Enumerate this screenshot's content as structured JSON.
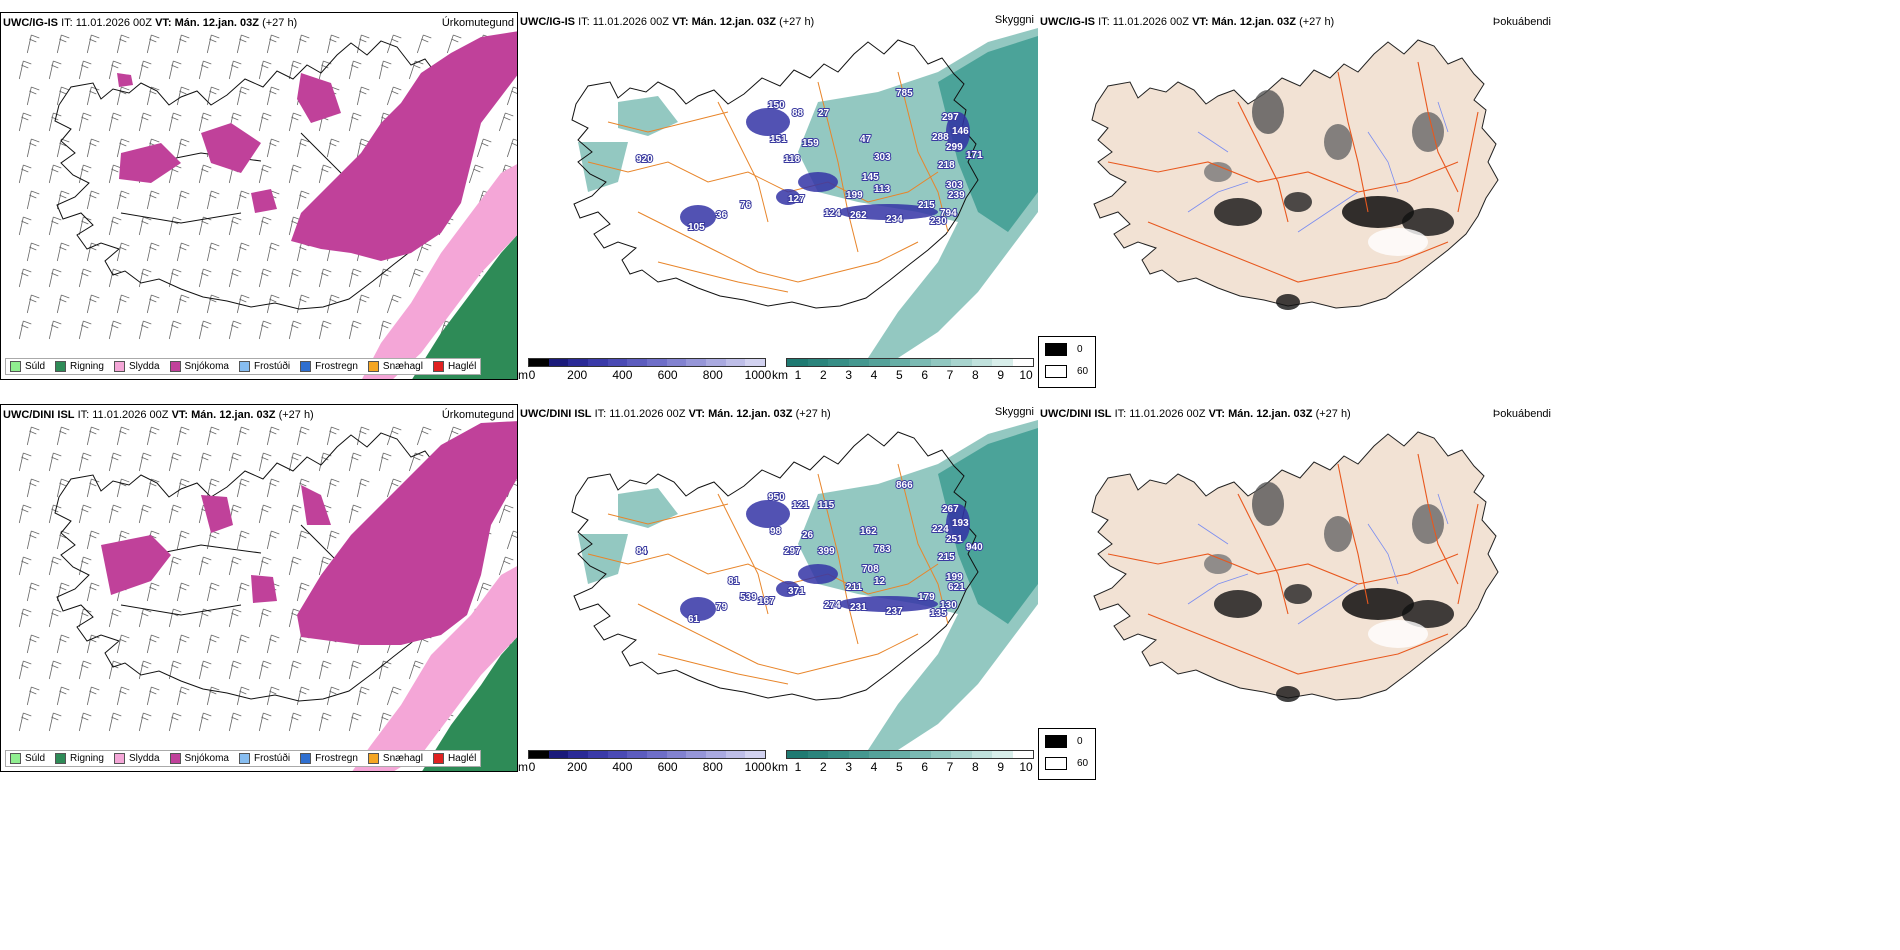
{
  "rows": [
    {
      "model": "UWC/IG-IS",
      "it_label": "IT:",
      "it_value": "11.01.2026 00Z",
      "vt_label": "VT:",
      "vt_value": "Mán. 12.jan. 03Z",
      "lead": "(+27 h)",
      "visibility_labels": [
        "150",
        "88",
        "27",
        "151",
        "159",
        "118",
        "47",
        "303",
        "145",
        "785",
        "297",
        "288",
        "146",
        "299",
        "171",
        "218",
        "303",
        "239",
        "199",
        "215",
        "794",
        "230",
        "234",
        "262",
        "124",
        "127",
        "76",
        "36",
        "105",
        "920",
        "113"
      ]
    },
    {
      "model": "UWC/DINI ISL",
      "it_label": "IT:",
      "it_value": "11.01.2026 00Z",
      "vt_label": "VT:",
      "vt_value": "Mán. 12.jan. 03Z",
      "lead": "(+27 h)",
      "visibility_labels": [
        "950",
        "121",
        "115",
        "98",
        "26",
        "297",
        "162",
        "783",
        "708",
        "866",
        "267",
        "224",
        "193",
        "251",
        "940",
        "215",
        "199",
        "621",
        "211",
        "179",
        "130",
        "135",
        "237",
        "231",
        "274",
        "371",
        "539",
        "79",
        "61",
        "84",
        "12",
        "399",
        "167",
        "81"
      ]
    }
  ],
  "panel_titles": {
    "precip_type": "Úrkomutegund",
    "visibility": "Skyggni",
    "fog": "Þokuábendi"
  },
  "precip_legend": [
    {
      "label": "Súld",
      "color": "#90ee90"
    },
    {
      "label": "Rigning",
      "color": "#2e8b57"
    },
    {
      "label": "Slydda",
      "color": "#f4a6d7"
    },
    {
      "label": "Snjókoma",
      "color": "#c0419a"
    },
    {
      "label": "Frostúði",
      "color": "#87bdf0"
    },
    {
      "label": "Frostregn",
      "color": "#2f6fd0"
    },
    {
      "label": "Snæhagl",
      "color": "#f5a623"
    },
    {
      "label": "Haglél",
      "color": "#e02020"
    }
  ],
  "altitude_bar": {
    "unit": "m",
    "ticks": [
      "0",
      "200",
      "400",
      "600",
      "800",
      "1000"
    ],
    "colors": [
      "#000000",
      "#1a1a7a",
      "#2a2a96",
      "#3a3aa8",
      "#4a4ab4",
      "#5c5cbe",
      "#6e6ec8",
      "#8282d0",
      "#9696d8",
      "#aaaae0",
      "#bebee8",
      "#d2d2f0"
    ]
  },
  "visibility_bar": {
    "unit": "km",
    "ticks": [
      "1",
      "2",
      "3",
      "4",
      "5",
      "6",
      "7",
      "8",
      "9",
      "10"
    ],
    "colors": [
      "#1f7a72",
      "#2b847c",
      "#378e86",
      "#459890",
      "#55a29a",
      "#67aea6",
      "#7bbab3",
      "#91c7c0",
      "#a8d4ce",
      "#c0e1dc",
      "#d8eeea",
      "#ffffff"
    ]
  },
  "fog_legend": [
    {
      "label": "0",
      "color": "#000000"
    },
    {
      "label": "60",
      "color": "#ffffff"
    }
  ],
  "colors": {
    "snow": "#c0419a",
    "sleet": "#f4a6d7",
    "rain": "#2e8b57",
    "cloud_teal": "#3a9a8e",
    "land_fog": "#f2e2d4",
    "roads": "#e8581e",
    "rivers": "#7a8cf0",
    "route_orange": "#e8852a"
  }
}
